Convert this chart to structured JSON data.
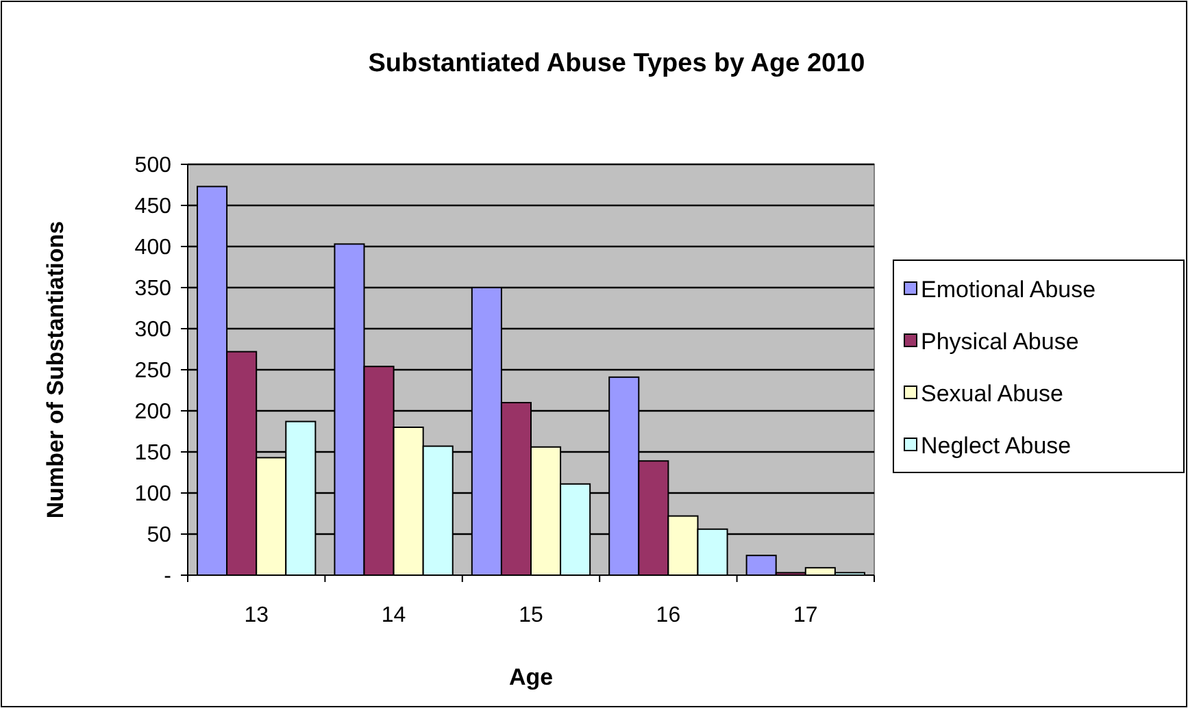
{
  "chart_data": {
    "type": "bar",
    "title": "Substantiated Abuse Types by Age 2010",
    "xlabel": "Age",
    "ylabel": "Number of Substantiations",
    "categories": [
      "13",
      "14",
      "15",
      "16",
      "17"
    ],
    "series": [
      {
        "name": "Emotional Abuse",
        "color": "#9999ff",
        "values": [
          473,
          403,
          350,
          241,
          24
        ]
      },
      {
        "name": "Physical Abuse",
        "color": "#993366",
        "values": [
          272,
          254,
          210,
          139,
          3
        ]
      },
      {
        "name": "Sexual Abuse",
        "color": "#ffffcc",
        "values": [
          143,
          180,
          156,
          72,
          9
        ]
      },
      {
        "name": "Neglect Abuse",
        "color": "#ccffff",
        "values": [
          187,
          157,
          111,
          56,
          3
        ]
      }
    ],
    "ylim": [
      0,
      500
    ],
    "yticks": [
      {
        "value": 0,
        "label": "-"
      },
      50,
      100,
      150,
      200,
      250,
      300,
      350,
      400,
      450,
      500
    ],
    "grid": "y",
    "legend": "right"
  }
}
